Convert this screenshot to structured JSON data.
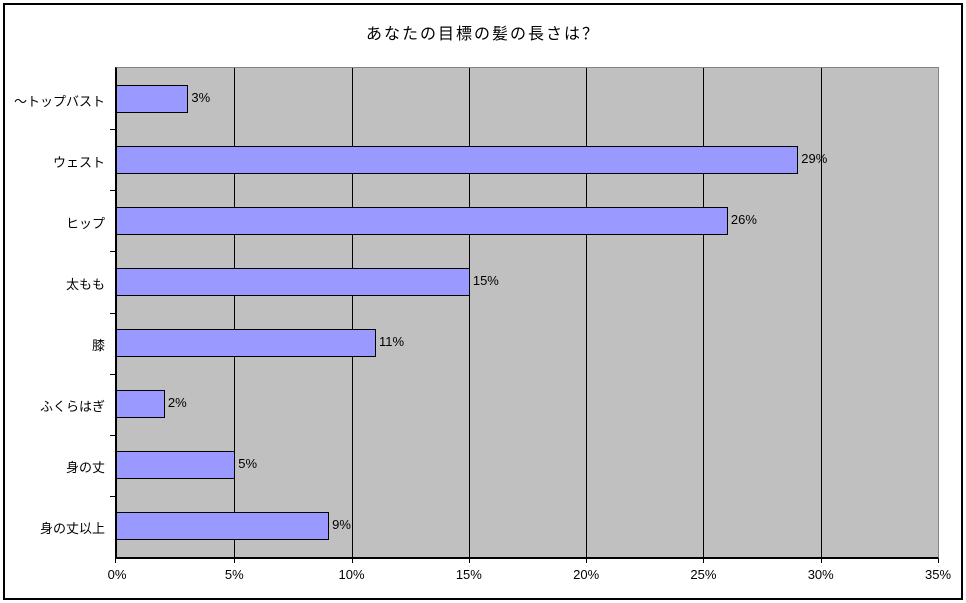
{
  "chart_data": {
    "type": "bar",
    "orientation": "horizontal",
    "title": "あなたの目標の髪の長さは？",
    "categories": [
      "～トップバスト",
      "ウェスト",
      "ヒップ",
      "太もも",
      "膝",
      "ふくらはぎ",
      "身の丈",
      "身の丈以上"
    ],
    "values": [
      3,
      29,
      26,
      15,
      11,
      2,
      5,
      9
    ],
    "data_labels": [
      "3%",
      "29%",
      "26%",
      "15%",
      "11%",
      "2%",
      "5%",
      "9%"
    ],
    "xlabel": "",
    "ylabel": "",
    "xlim": [
      0,
      35
    ],
    "x_tick_step": 5,
    "x_tick_labels": [
      "0%",
      "5%",
      "10%",
      "15%",
      "20%",
      "25%",
      "30%",
      "35%"
    ],
    "grid": true,
    "legend": false,
    "colors": {
      "bar_fill": "#9999FF",
      "bar_border": "#000000",
      "plot_background": "#C0C0C0",
      "gridline": "#000000",
      "chart_border": "#000000",
      "background": "#FFFFFF",
      "text": "#000000"
    }
  }
}
